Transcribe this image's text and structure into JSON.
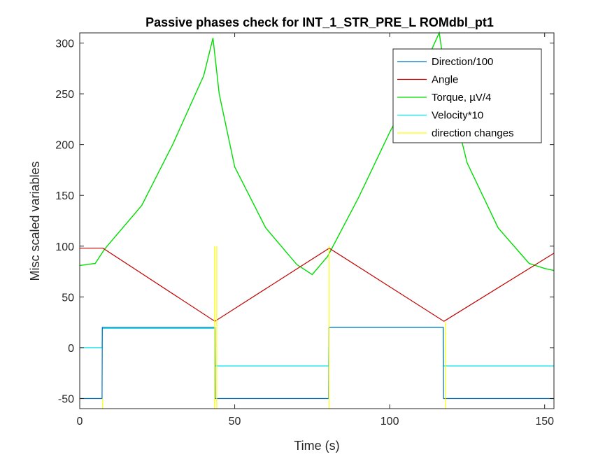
{
  "chart_data": {
    "type": "line",
    "title": "Passive phases check for INT_1_STR_PRE_L ROMdbl_pt1",
    "xlabel": "Time (s)",
    "ylabel": "Misc scaled variables",
    "xlim": [
      0,
      153
    ],
    "ylim": [
      -60,
      310
    ],
    "x_ticks": [
      0,
      50,
      100,
      150
    ],
    "y_ticks": [
      -50,
      0,
      50,
      100,
      150,
      200,
      250,
      300
    ],
    "grid": false,
    "legend_position": "top-right",
    "series": [
      {
        "name": "Direction/100",
        "color": "#0072bd",
        "x": [
          0,
          7.2,
          7.3,
          43.6,
          43.7,
          80.3,
          80.4,
          117.3,
          117.4,
          153
        ],
        "y": [
          -50,
          -50,
          20,
          20,
          -50,
          -50,
          20,
          20,
          -50,
          -50
        ]
      },
      {
        "name": "Angle",
        "color": "#c00000",
        "x": [
          0,
          7.5,
          43.6,
          80.5,
          117.5,
          153
        ],
        "y": [
          98,
          98,
          26,
          98,
          26,
          93
        ]
      },
      {
        "name": "Torque, µV/4",
        "color": "#00dd00",
        "x": [
          0,
          5,
          8,
          20,
          30,
          40,
          43,
          45,
          50,
          60,
          70,
          75,
          80,
          90,
          100,
          110,
          116,
          118,
          125,
          135,
          145,
          150,
          153
        ],
        "y": [
          81,
          83,
          97,
          140,
          200,
          268,
          305,
          250,
          178,
          118,
          82,
          72,
          90,
          148,
          212,
          270,
          310,
          268,
          182,
          118,
          83,
          78,
          76
        ]
      },
      {
        "name": "Velocity*10",
        "color": "#00e5ee",
        "x": [
          0,
          7.2,
          7.3,
          43.6,
          43.7,
          80.3,
          80.4,
          117.3,
          117.4,
          153
        ],
        "y": [
          0,
          0,
          19,
          19,
          -18,
          -18,
          20,
          20,
          -18,
          -18
        ]
      },
      {
        "name": "direction changes",
        "color": "#ffff00",
        "x": [
          7.4,
          43.5,
          44.2,
          80.4,
          118
        ],
        "y": [
          -50,
          100,
          100,
          100,
          25
        ]
      }
    ]
  }
}
